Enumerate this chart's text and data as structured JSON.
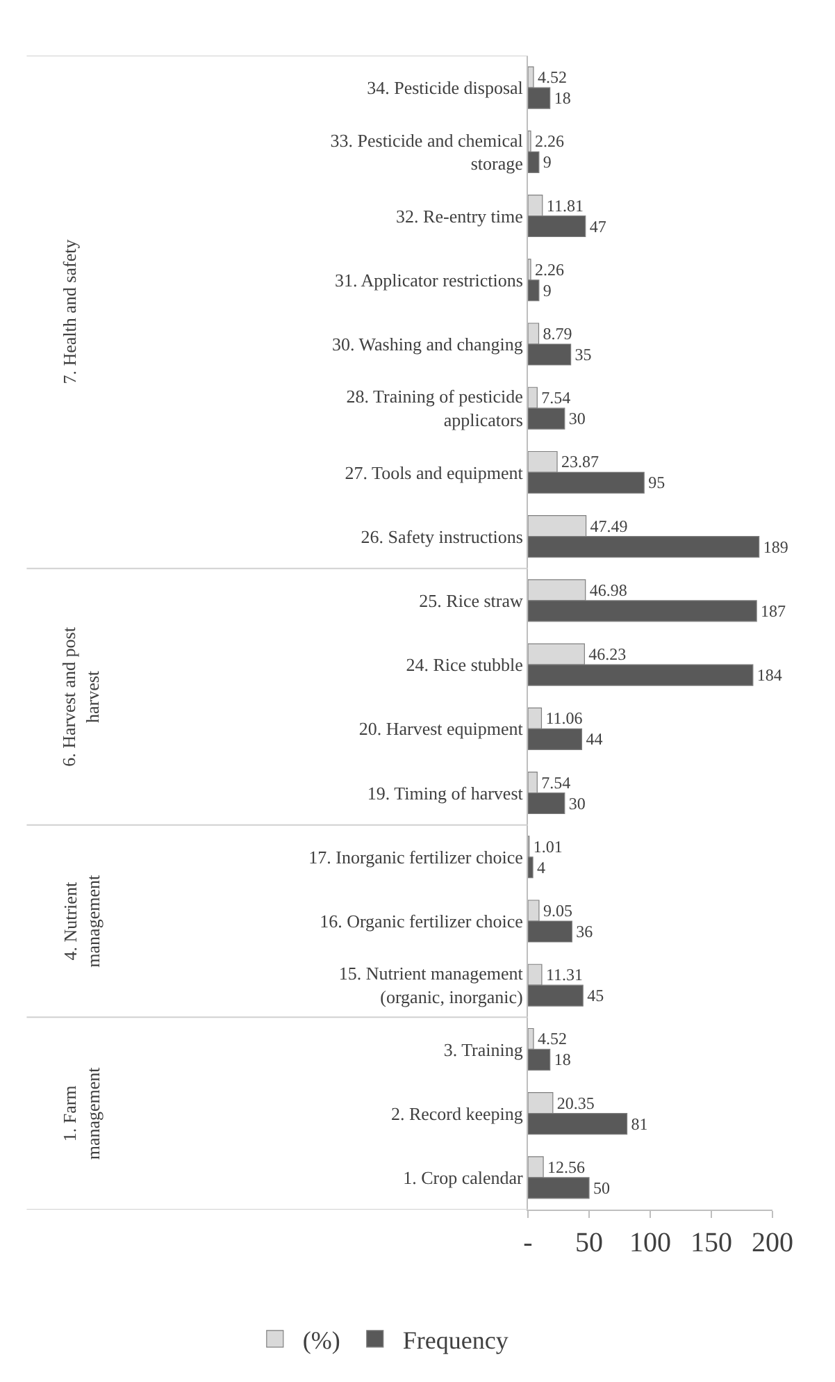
{
  "chart_data": {
    "type": "bar",
    "orientation": "horizontal",
    "data_labels": true,
    "legend": "bottom",
    "categories": [
      "34. Pesticide disposal",
      "33. Pesticide and chemical\nstorage",
      "32. Re-entry time",
      "31. Applicator restrictions",
      "30. Washing and changing",
      "28. Training of pesticide\napplicators",
      "27. Tools and equipment",
      "26. Safety instructions",
      "25. Rice straw",
      "24. Rice stubble",
      "20. Harvest equipment",
      "19. Timing of harvest",
      "17. Inorganic fertilizer choice",
      "16. Organic fertilizer choice",
      "15. Nutrient management\n(organic, inorganic)",
      "3. Training",
      "2. Record keeping",
      "1. Crop calendar"
    ],
    "series": [
      {
        "name": "(%)",
        "color": "#d9d9d9",
        "values": [
          4.52,
          2.26,
          11.81,
          2.26,
          8.79,
          7.54,
          23.87,
          47.49,
          46.98,
          46.23,
          11.06,
          7.54,
          1.01,
          9.05,
          11.31,
          4.52,
          20.35,
          12.56
        ]
      },
      {
        "name": "Frequency",
        "color": "#595959",
        "values": [
          18,
          9,
          47,
          9,
          35,
          30,
          95,
          189,
          187,
          184,
          44,
          30,
          4,
          36,
          45,
          18,
          81,
          50
        ]
      }
    ],
    "xlim": [
      0,
      200
    ],
    "xticks": [
      {
        "value": 0,
        "label": "-"
      },
      50,
      100,
      150,
      200
    ],
    "annotations": [
      "7. Health and safety",
      "6. Harvest and post\nharvest",
      "4. Nutrient\nmanagement",
      "1. Farm\nmanagement"
    ]
  }
}
